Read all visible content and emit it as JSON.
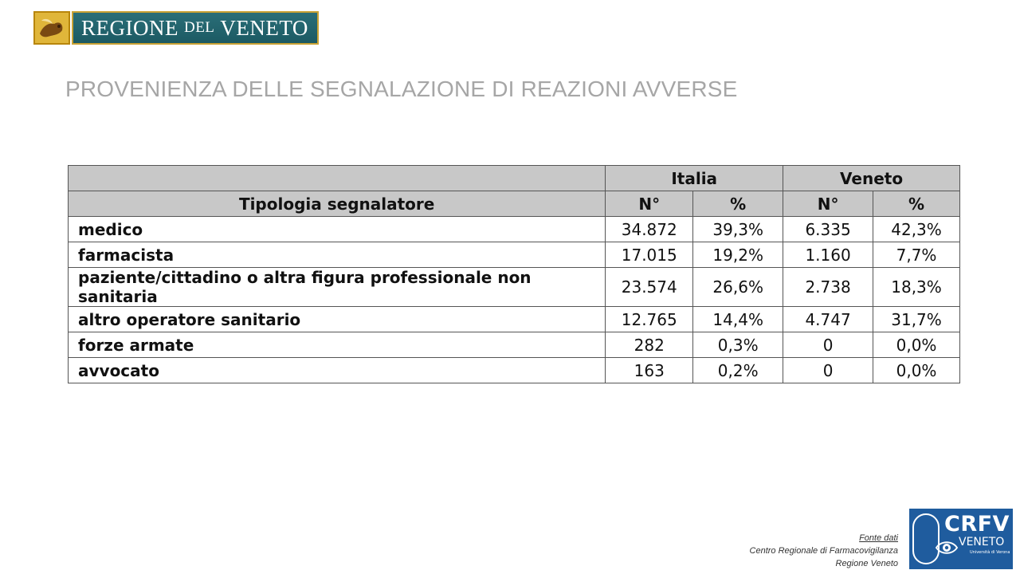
{
  "brand": {
    "emblem_icon": "lion-of-st-mark-icon",
    "name_part1": "REGIONE",
    "name_part2": "DEL",
    "name_part3": "VENETO",
    "colors": {
      "bar": "#1c5a63",
      "gold": "#c9a233"
    }
  },
  "title": "PROVENIENZA DELLE SEGNALAZIONE DI REAZIONI AVVERSE",
  "table": {
    "group_headers": [
      "Italia",
      "Veneto"
    ],
    "header_label": "Tipologia segnalatore",
    "sub_headers": [
      "N°",
      "%",
      "N°",
      "%"
    ],
    "rows": [
      {
        "label": "medico",
        "it_n": "34.872",
        "it_p": "39,3%",
        "ve_n": "6.335",
        "ve_p": "42,3%"
      },
      {
        "label": "farmacista",
        "it_n": "17.015",
        "it_p": "19,2%",
        "ve_n": "1.160",
        "ve_p": "7,7%"
      },
      {
        "label": "paziente/cittadino o altra figura professionale non sanitaria",
        "it_n": "23.574",
        "it_p": "26,6%",
        "ve_n": "2.738",
        "ve_p": "18,3%"
      },
      {
        "label": "altro operatore sanitario",
        "it_n": "12.765",
        "it_p": "14,4%",
        "ve_n": "4.747",
        "ve_p": "31,7%"
      },
      {
        "label": "forze armate",
        "it_n": "282",
        "it_p": "0,3%",
        "ve_n": "0",
        "ve_p": "0,0%"
      },
      {
        "label": "avvocato",
        "it_n": "163",
        "it_p": "0,2%",
        "ve_n": "0",
        "ve_p": "0,0%"
      }
    ]
  },
  "source": {
    "heading": "Fonte dati",
    "line1": "Centro Regionale di Farmacovigilanza",
    "line2": "Regione Veneto"
  },
  "crfv_logo": {
    "title": "CRFV",
    "subtitle": "VENETO",
    "affiliation": "Università di Verona",
    "icon": "eye-capsule-icon",
    "color": "#1f5c9e"
  }
}
